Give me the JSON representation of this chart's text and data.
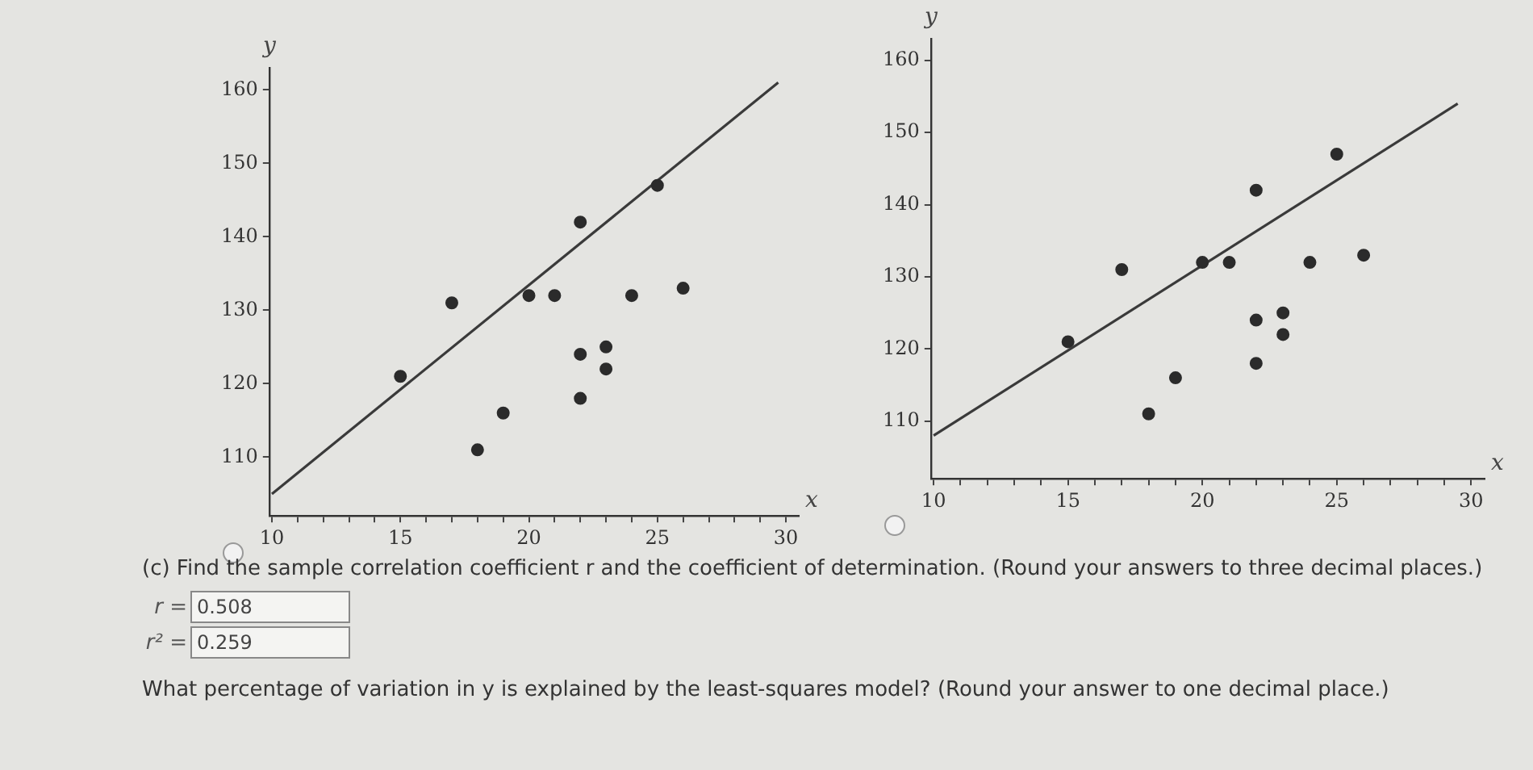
{
  "chart_data": [
    {
      "type": "scatter",
      "xlabel": "x",
      "ylabel": "y",
      "xlim": [
        9.9,
        30.5
      ],
      "ylim": [
        102,
        163
      ],
      "xticks": [
        10,
        {
          "value": 11,
          "label": null
        },
        {
          "value": 12,
          "label": null
        },
        {
          "value": 13,
          "label": null
        },
        {
          "value": 14,
          "label": null
        },
        15,
        {
          "value": 16,
          "label": null
        },
        {
          "value": 17,
          "label": null
        },
        {
          "value": 18,
          "label": null
        },
        {
          "value": 19,
          "label": null
        },
        20,
        {
          "value": 21,
          "label": null
        },
        {
          "value": 22,
          "label": null
        },
        {
          "value": 23,
          "label": null
        },
        {
          "value": 24,
          "label": null
        },
        25,
        {
          "value": 26,
          "label": null
        },
        {
          "value": 27,
          "label": null
        },
        {
          "value": 28,
          "label": null
        },
        {
          "value": 29,
          "label": null
        },
        30
      ],
      "yticks": [
        110,
        120,
        130,
        140,
        150,
        160
      ],
      "grid": false,
      "legend": false,
      "marker": "circle",
      "series": [
        {
          "type": "scatter",
          "color": "#2b2b2b",
          "x": [
            15,
            17,
            18,
            19,
            20,
            21,
            22,
            22,
            22,
            23,
            23,
            24,
            25,
            26
          ],
          "values": [
            121,
            131,
            111,
            116,
            132,
            132,
            142,
            124,
            118,
            125,
            122,
            132,
            147,
            133
          ]
        },
        {
          "type": "line",
          "color": "#3a3a3a",
          "marker": "none",
          "x": [
            10,
            29.7
          ],
          "values": [
            105,
            161
          ]
        }
      ]
    },
    {
      "type": "scatter",
      "xlabel": "x",
      "ylabel": "y",
      "xlim": [
        9.9,
        30.5
      ],
      "ylim": [
        102,
        163
      ],
      "xticks": [
        10,
        {
          "value": 11,
          "label": null
        },
        {
          "value": 12,
          "label": null
        },
        {
          "value": 13,
          "label": null
        },
        {
          "value": 14,
          "label": null
        },
        15,
        {
          "value": 16,
          "label": null
        },
        {
          "value": 17,
          "label": null
        },
        {
          "value": 18,
          "label": null
        },
        {
          "value": 19,
          "label": null
        },
        20,
        {
          "value": 21,
          "label": null
        },
        {
          "value": 22,
          "label": null
        },
        {
          "value": 23,
          "label": null
        },
        {
          "value": 24,
          "label": null
        },
        25,
        {
          "value": 26,
          "label": null
        },
        {
          "value": 27,
          "label": null
        },
        {
          "value": 28,
          "label": null
        },
        {
          "value": 29,
          "label": null
        },
        30
      ],
      "yticks": [
        110,
        120,
        130,
        140,
        150,
        160
      ],
      "grid": false,
      "legend": false,
      "marker": "circle",
      "series": [
        {
          "type": "scatter",
          "color": "#2b2b2b",
          "x": [
            15,
            17,
            18,
            19,
            20,
            21,
            22,
            22,
            22,
            23,
            23,
            24,
            25,
            26
          ],
          "values": [
            121,
            131,
            111,
            116,
            132,
            132,
            142,
            124,
            118,
            125,
            122,
            132,
            147,
            133
          ]
        },
        {
          "type": "line",
          "color": "#3a3a3a",
          "marker": "none",
          "x": [
            10,
            29.5
          ],
          "values": [
            108,
            154
          ]
        }
      ]
    },
    {
      "type": "other",
      "annotations": [
        "(c) Find the sample correlation coefficient r and the coefficient of determination. (Round your answers to three decimal places.)",
        "r =",
        "0.508",
        "r² =",
        "0.259",
        "What percentage of variation in y is explained by the least-squares model? (Round your answer to one decimal place.)"
      ]
    }
  ]
}
